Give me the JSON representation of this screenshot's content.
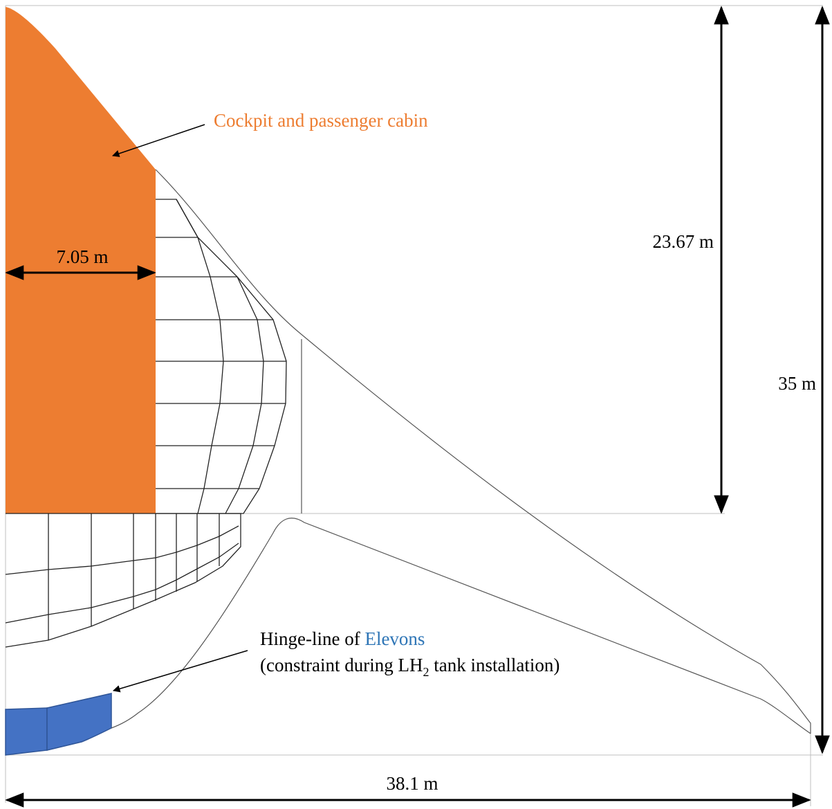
{
  "labels": {
    "cabin": "Cockpit and passenger cabin",
    "hinge_prefix": "Hinge-line of ",
    "hinge_elevons": "Elevons",
    "hinge_note_prefix": "(constraint during LH",
    "hinge_note_sub": "2",
    "hinge_note_suffix": " tank installation)"
  },
  "dimensions": {
    "cabin_width": "7.05 m",
    "cabin_length": "23.67 m",
    "total_length": "35 m",
    "span": "38.1 m"
  },
  "colors": {
    "cabin_fill": "#ED7D31",
    "elevon_fill": "#4472C4",
    "elevons_text": "#2E75B6",
    "cabin_text": "#ED7D31"
  }
}
